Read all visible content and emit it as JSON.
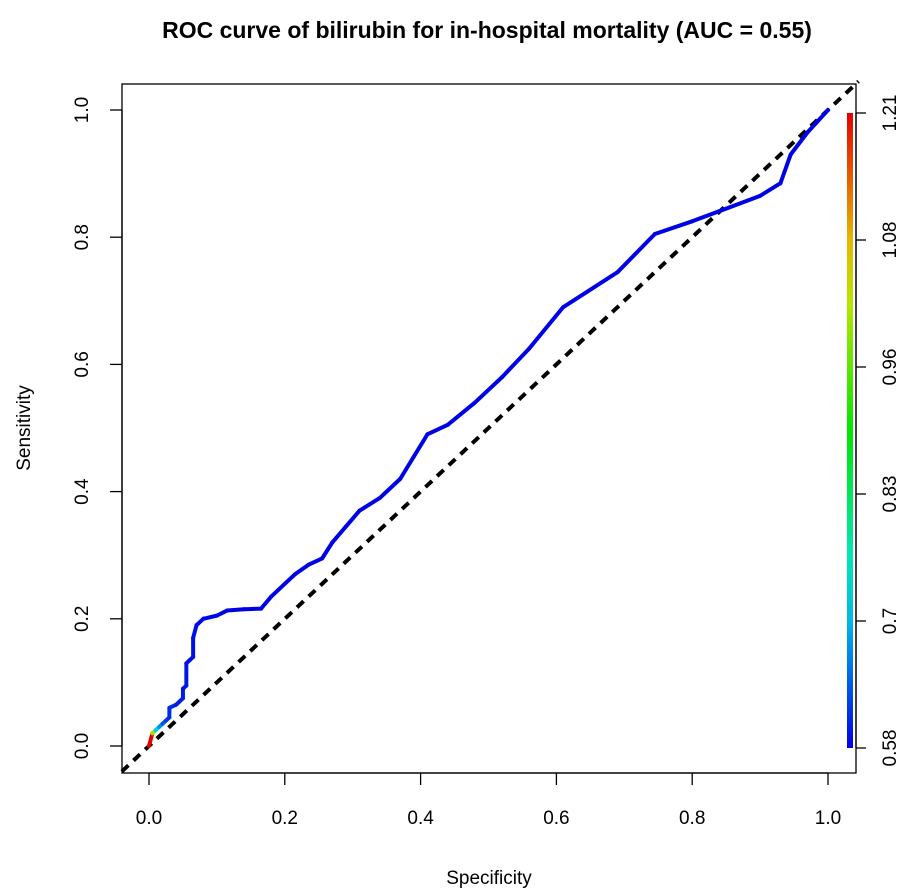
{
  "chart_data": {
    "type": "line",
    "title": "ROC curve of bilirubin for in-hospital mortality (AUC = 0.55)",
    "xlabel": "Specificity",
    "ylabel": "Sensitivity",
    "xlim": [
      0,
      1
    ],
    "ylim": [
      0,
      1
    ],
    "xticks": [
      "0.0",
      "0.2",
      "0.4",
      "0.6",
      "0.8",
      "1.0"
    ],
    "yticks": [
      "0.0",
      "0.2",
      "0.4",
      "0.6",
      "0.8",
      "1.0"
    ],
    "grid": false,
    "legend": "none",
    "reference_line": {
      "style": "dashed",
      "color": "#000000",
      "from": [
        0,
        0
      ],
      "to": [
        1,
        1
      ]
    },
    "series": [
      {
        "x": [
          0.0,
          0.005,
          0.01,
          0.015,
          0.02,
          0.025,
          0.03,
          0.03,
          0.04,
          0.045,
          0.05,
          0.05,
          0.055,
          0.055,
          0.06,
          0.065,
          0.065,
          0.07,
          0.08,
          0.1,
          0.115,
          0.14,
          0.165,
          0.18,
          0.2,
          0.215,
          0.235,
          0.255,
          0.27,
          0.29,
          0.31,
          0.34,
          0.37,
          0.39,
          0.41,
          0.44,
          0.48,
          0.52,
          0.56,
          0.61,
          0.69,
          0.745,
          0.8,
          0.85,
          0.9,
          0.93,
          0.945,
          0.97,
          1.0
        ],
        "y": [
          0.0,
          0.02,
          0.025,
          0.03,
          0.035,
          0.04,
          0.045,
          0.06,
          0.065,
          0.07,
          0.075,
          0.09,
          0.095,
          0.13,
          0.135,
          0.14,
          0.17,
          0.19,
          0.2,
          0.205,
          0.213,
          0.215,
          0.216,
          0.235,
          0.255,
          0.27,
          0.285,
          0.295,
          0.32,
          0.345,
          0.37,
          0.39,
          0.42,
          0.455,
          0.49,
          0.505,
          0.54,
          0.58,
          0.625,
          0.69,
          0.745,
          0.805,
          0.825,
          0.845,
          0.865,
          0.885,
          0.93,
          0.965,
          1.0
        ],
        "threshold": [
          1.21,
          1.0,
          0.72,
          0.68,
          0.64,
          0.62,
          0.61,
          0.61,
          0.6,
          0.6,
          0.6,
          0.595,
          0.595,
          0.59,
          0.59,
          0.59,
          0.59,
          0.585,
          0.585,
          0.585,
          0.58,
          0.58,
          0.58,
          0.58,
          0.58,
          0.58,
          0.58,
          0.58,
          0.58,
          0.58,
          0.58,
          0.58,
          0.58,
          0.58,
          0.58,
          0.58,
          0.58,
          0.58,
          0.58,
          0.58,
          0.58,
          0.58,
          0.58,
          0.58,
          0.58,
          0.58,
          0.58,
          0.58,
          0.58
        ]
      }
    ],
    "colorbar": {
      "ticks": [
        "0.58",
        "0.7",
        "0.83",
        "0.96",
        "1.08",
        "1.21"
      ],
      "range": [
        0.58,
        1.21
      ]
    }
  }
}
